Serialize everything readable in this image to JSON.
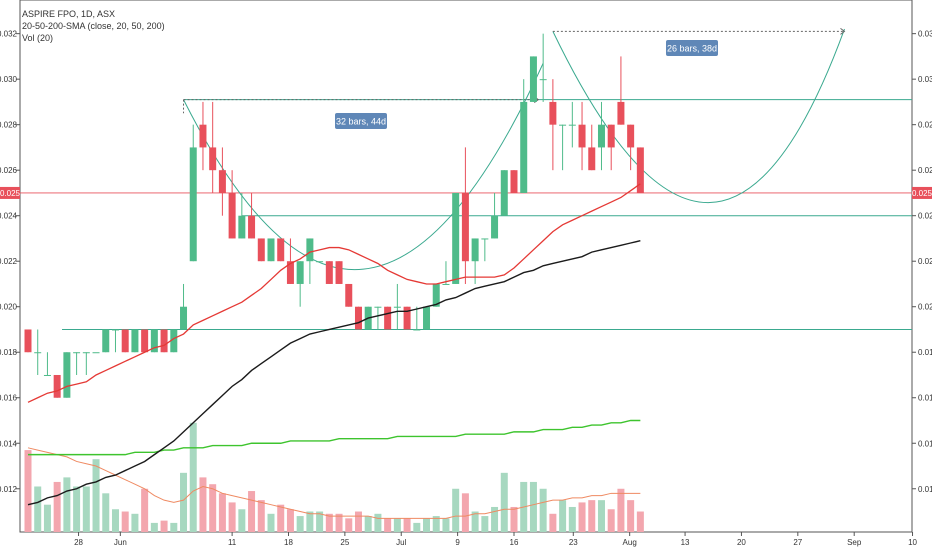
{
  "chart_data": {
    "type": "candlestick",
    "title": "ASPIRE FPO, 1D, ASX",
    "indicators": [
      "20-50-200-SMA (close, 20, 50, 200)",
      "Vol (20)"
    ],
    "ylim": [
      0.0101,
      0.0326
    ],
    "y_ticks": [
      "0.012",
      "0.014",
      "0.016",
      "0.018",
      "0.020",
      "0.022",
      "0.024",
      "0.026",
      "0.028",
      "0.030",
      "0.032"
    ],
    "x_ticks": [
      "28",
      "Jun",
      "11",
      "18",
      "25",
      "Jul",
      "9",
      "16",
      "23",
      "Aug",
      "13",
      "20",
      "27",
      "Sep",
      "10"
    ],
    "last_price": "0.025",
    "candles": [
      [
        0.019,
        0.019,
        0.018,
        0.018
      ],
      [
        0.018,
        0.019,
        0.017,
        0.018
      ],
      [
        0.017,
        0.018,
        0.017,
        0.017
      ],
      [
        0.017,
        0.017,
        0.016,
        0.016
      ],
      [
        0.016,
        0.018,
        0.016,
        0.018
      ],
      [
        0.018,
        0.018,
        0.017,
        0.018
      ],
      [
        0.018,
        0.018,
        0.017,
        0.018
      ],
      [
        0.018,
        0.018,
        0.018,
        0.018
      ],
      [
        0.018,
        0.019,
        0.018,
        0.019
      ],
      [
        0.019,
        0.019,
        0.018,
        0.019
      ],
      [
        0.019,
        0.019,
        0.018,
        0.018
      ],
      [
        0.018,
        0.019,
        0.018,
        0.019
      ],
      [
        0.019,
        0.019,
        0.018,
        0.018
      ],
      [
        0.018,
        0.019,
        0.018,
        0.019
      ],
      [
        0.019,
        0.019,
        0.018,
        0.018
      ],
      [
        0.018,
        0.019,
        0.018,
        0.019
      ],
      [
        0.019,
        0.021,
        0.019,
        0.02
      ],
      [
        0.022,
        0.028,
        0.022,
        0.027
      ],
      [
        0.028,
        0.029,
        0.026,
        0.027
      ],
      [
        0.027,
        0.029,
        0.025,
        0.026
      ],
      [
        0.026,
        0.027,
        0.024,
        0.025
      ],
      [
        0.025,
        0.026,
        0.023,
        0.023
      ],
      [
        0.023,
        0.025,
        0.023,
        0.024
      ],
      [
        0.024,
        0.025,
        0.023,
        0.023
      ],
      [
        0.023,
        0.023,
        0.022,
        0.022
      ],
      [
        0.022,
        0.023,
        0.022,
        0.023
      ],
      [
        0.023,
        0.023,
        0.022,
        0.022
      ],
      [
        0.022,
        0.023,
        0.021,
        0.021
      ],
      [
        0.021,
        0.022,
        0.02,
        0.022
      ],
      [
        0.022,
        0.023,
        0.021,
        0.023
      ],
      [
        0.022,
        0.022,
        0.022,
        0.022
      ],
      [
        0.022,
        0.022,
        0.021,
        0.021
      ],
      [
        0.022,
        0.022,
        0.021,
        0.021
      ],
      [
        0.021,
        0.021,
        0.02,
        0.02
      ],
      [
        0.02,
        0.02,
        0.019,
        0.019
      ],
      [
        0.019,
        0.02,
        0.019,
        0.02
      ],
      [
        0.02,
        0.02,
        0.019,
        0.02
      ],
      [
        0.02,
        0.02,
        0.019,
        0.019
      ],
      [
        0.02,
        0.021,
        0.019,
        0.02
      ],
      [
        0.02,
        0.02,
        0.019,
        0.019
      ],
      [
        0.019,
        0.02,
        0.019,
        0.019
      ],
      [
        0.019,
        0.02,
        0.019,
        0.02
      ],
      [
        0.02,
        0.021,
        0.02,
        0.021
      ],
      [
        0.021,
        0.022,
        0.021,
        0.021
      ],
      [
        0.021,
        0.025,
        0.021,
        0.025
      ],
      [
        0.025,
        0.027,
        0.021,
        0.022
      ],
      [
        0.022,
        0.023,
        0.021,
        0.023
      ],
      [
        0.023,
        0.023,
        0.022,
        0.023
      ],
      [
        0.023,
        0.025,
        0.023,
        0.024
      ],
      [
        0.024,
        0.026,
        0.024,
        0.026
      ],
      [
        0.026,
        0.026,
        0.025,
        0.025
      ],
      [
        0.025,
        0.03,
        0.025,
        0.029
      ],
      [
        0.029,
        0.031,
        0.029,
        0.031
      ],
      [
        0.03,
        0.032,
        0.029,
        0.03
      ],
      [
        0.029,
        0.03,
        0.026,
        0.028
      ],
      [
        0.028,
        0.028,
        0.026,
        0.028
      ],
      [
        0.028,
        0.029,
        0.027,
        0.028
      ],
      [
        0.028,
        0.029,
        0.026,
        0.027
      ],
      [
        0.027,
        0.028,
        0.026,
        0.026
      ],
      [
        0.027,
        0.029,
        0.026,
        0.028
      ],
      [
        0.028,
        0.028,
        0.026,
        0.027
      ],
      [
        0.029,
        0.031,
        0.028,
        0.028
      ],
      [
        0.028,
        0.028,
        0.026,
        0.027
      ],
      [
        0.027,
        0.027,
        0.025,
        0.025
      ]
    ],
    "volumes": [
      0.0137,
      0.0121,
      0.0113,
      0.0123,
      0.0125,
      0.0121,
      0.0121,
      0.0133,
      0.0118,
      0.0111,
      0.011,
      0.0109,
      0.012,
      0.0105,
      0.0106,
      0.0105,
      0.0127,
      0.0149,
      0.0125,
      0.0122,
      0.0118,
      0.0114,
      0.0111,
      0.0119,
      0.0115,
      0.0109,
      0.0113,
      0.0111,
      0.0108,
      0.011,
      0.011,
      0.0109,
      0.0109,
      0.0107,
      0.011,
      0.0108,
      0.0109,
      0.0107,
      0.0107,
      0.0107,
      0.0105,
      0.0107,
      0.0108,
      0.0107,
      0.012,
      0.0118,
      0.011,
      0.0108,
      0.0112,
      0.0127,
      0.0112,
      0.0123,
      0.0123,
      0.012,
      0.0109,
      0.0115,
      0.0112,
      0.0114,
      0.0115,
      0.0115,
      0.0111,
      0.012,
      0.0115,
      0.011
    ],
    "sma20": [
      0.0158,
      0.016,
      0.0162,
      0.0163,
      0.0165,
      0.0166,
      0.0167,
      0.017,
      0.0172,
      0.0174,
      0.0176,
      0.0178,
      0.018,
      0.0182,
      0.0183,
      0.0186,
      0.0188,
      0.0192,
      0.0194,
      0.0196,
      0.0198,
      0.02,
      0.0202,
      0.0205,
      0.0208,
      0.0212,
      0.0216,
      0.0219,
      0.0221,
      0.0224,
      0.0225,
      0.0226,
      0.0226,
      0.0225,
      0.0223,
      0.0221,
      0.0219,
      0.0216,
      0.0214,
      0.0212,
      0.0211,
      0.021,
      0.021,
      0.0211,
      0.0212,
      0.0213,
      0.0213,
      0.0213,
      0.0213,
      0.0214,
      0.0217,
      0.0221,
      0.0225,
      0.0229,
      0.0233,
      0.0236,
      0.0238,
      0.024,
      0.0242,
      0.0244,
      0.0246,
      0.0248,
      0.0251,
      0.0254
    ],
    "sma50": [
      0.0113,
      0.0114,
      0.0116,
      0.0117,
      0.0119,
      0.012,
      0.0122,
      0.0123,
      0.0125,
      0.0126,
      0.0128,
      0.013,
      0.0132,
      0.0135,
      0.0138,
      0.0141,
      0.0145,
      0.0149,
      0.0153,
      0.0157,
      0.0161,
      0.0165,
      0.0168,
      0.0172,
      0.0175,
      0.0178,
      0.0181,
      0.0184,
      0.0186,
      0.0188,
      0.0189,
      0.019,
      0.0191,
      0.0192,
      0.0193,
      0.0195,
      0.0196,
      0.0197,
      0.0198,
      0.0198,
      0.0199,
      0.02,
      0.0201,
      0.0203,
      0.0204,
      0.0206,
      0.0208,
      0.0209,
      0.021,
      0.0211,
      0.0213,
      0.0215,
      0.0216,
      0.0218,
      0.0219,
      0.022,
      0.0221,
      0.0222,
      0.0224,
      0.0225,
      0.0226,
      0.0227,
      0.0228,
      0.0229
    ],
    "sma200": [
      0.0135,
      0.0135,
      0.0135,
      0.0135,
      0.0135,
      0.0135,
      0.0135,
      0.0135,
      0.0135,
      0.0135,
      0.0135,
      0.0136,
      0.0136,
      0.0136,
      0.0137,
      0.0137,
      0.0138,
      0.0138,
      0.0138,
      0.0139,
      0.0139,
      0.0139,
      0.0139,
      0.014,
      0.014,
      0.014,
      0.014,
      0.0141,
      0.0141,
      0.0141,
      0.0141,
      0.0141,
      0.0142,
      0.0142,
      0.0142,
      0.0142,
      0.0142,
      0.0142,
      0.0143,
      0.0143,
      0.0143,
      0.0143,
      0.0143,
      0.0143,
      0.0143,
      0.0144,
      0.0144,
      0.0144,
      0.0144,
      0.0144,
      0.0145,
      0.0145,
      0.0145,
      0.0146,
      0.0146,
      0.0146,
      0.0147,
      0.0147,
      0.0148,
      0.0148,
      0.0149,
      0.0149,
      0.015,
      0.015
    ],
    "vol_ma": [
      0.0138,
      0.0137,
      0.0136,
      0.0135,
      0.0134,
      0.0132,
      0.0131,
      0.013,
      0.0128,
      0.0126,
      0.0124,
      0.0122,
      0.012,
      0.0117,
      0.0115,
      0.0114,
      0.0115,
      0.0119,
      0.0121,
      0.012,
      0.0118,
      0.0117,
      0.0116,
      0.0115,
      0.0114,
      0.0113,
      0.0112,
      0.0111,
      0.011,
      0.0109,
      0.0109,
      0.0108,
      0.0108,
      0.0108,
      0.0108,
      0.0108,
      0.0107,
      0.0107,
      0.0107,
      0.0107,
      0.0107,
      0.0107,
      0.0107,
      0.0107,
      0.0108,
      0.0108,
      0.0109,
      0.0109,
      0.011,
      0.0111,
      0.0111,
      0.0112,
      0.0113,
      0.0114,
      0.0115,
      0.0115,
      0.0116,
      0.0116,
      0.0117,
      0.0117,
      0.0118,
      0.0118,
      0.0118,
      0.0118
    ],
    "horizontal_levels": [
      0.0291,
      0.024,
      0.019,
      0.025
    ],
    "measure_labels": [
      "32 bars, 44d",
      "26 bars, 38d"
    ],
    "colors": {
      "up": "#4fbb8a",
      "down": "#e8505b",
      "up_vol": "#a7d8c0",
      "down_vol": "#f3a6ae",
      "sma20": "#e53935",
      "sma50": "#1b1b1b",
      "sma200": "#3ec42e",
      "vol_ma": "#ef8a62",
      "levels": "#3aa98f",
      "label_bg": "#5f87b7",
      "price_tag": "#e8505b"
    }
  }
}
